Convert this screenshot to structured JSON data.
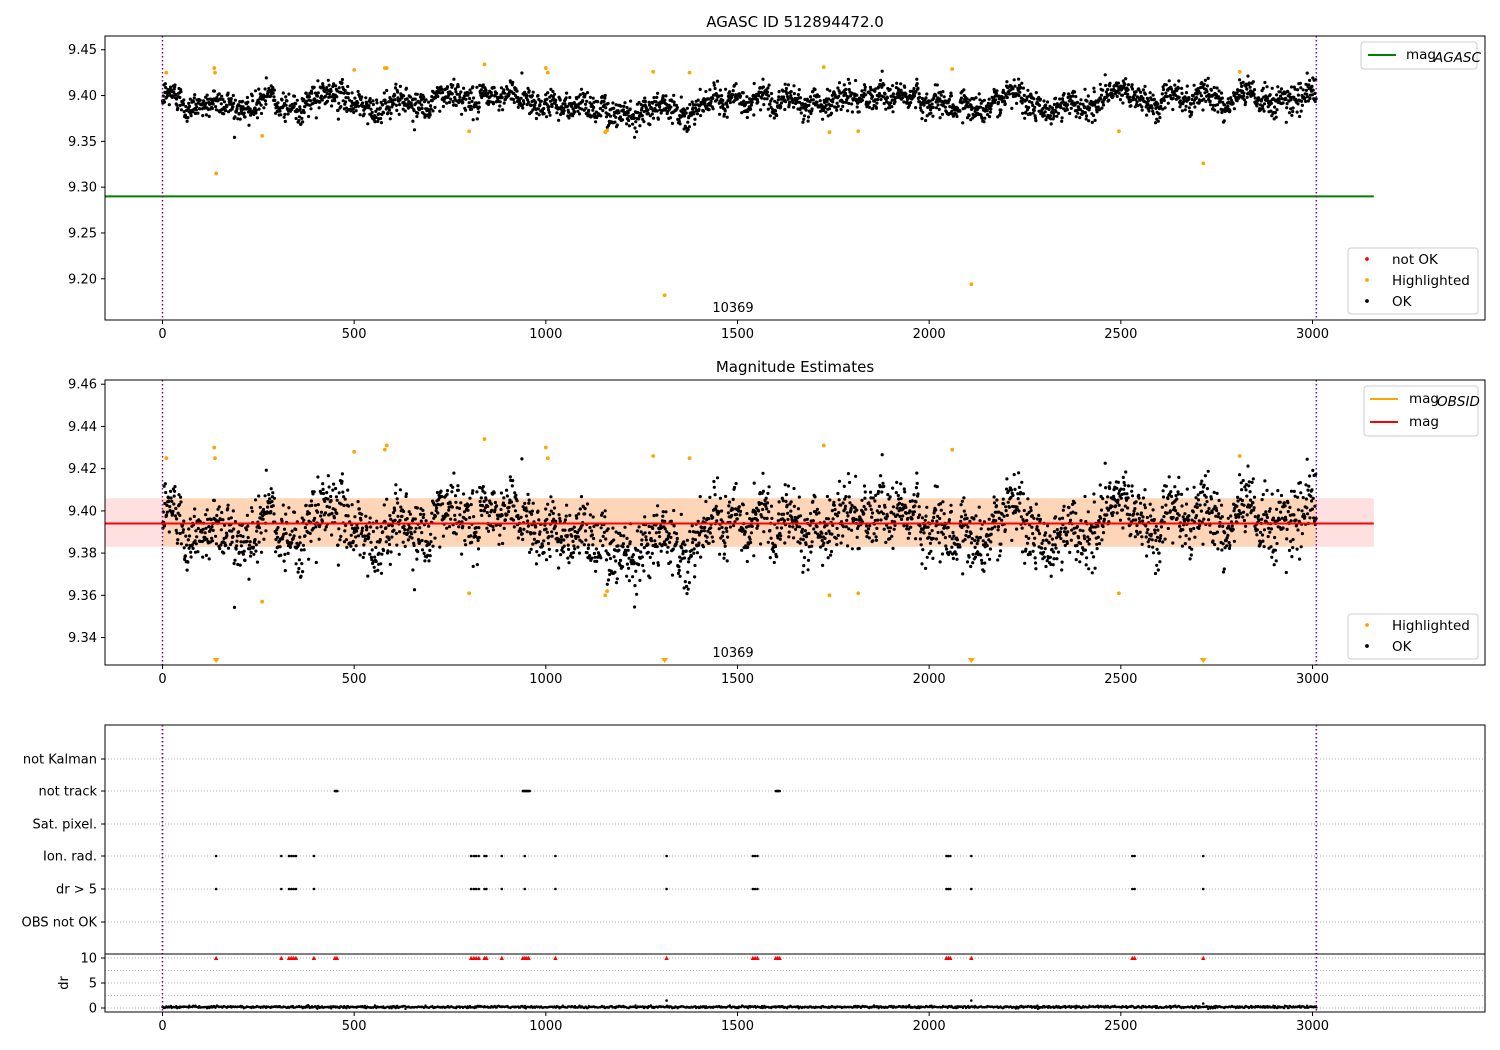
{
  "chart_data": [
    {
      "type": "scatter",
      "title": "AGASC ID 512894472.0",
      "xlim": [
        -150,
        3450
      ],
      "ylim": [
        9.155,
        9.465
      ],
      "xticks": [
        "0",
        "500",
        "1000",
        "1500",
        "2000",
        "2500",
        "3000"
      ],
      "yticks": [
        "9.20",
        "9.25",
        "9.30",
        "9.35",
        "9.40",
        "9.45"
      ],
      "annotation": "10369",
      "obs_boundaries": [
        0,
        3010
      ],
      "mag_agasc": 9.29,
      "mag_agasc_xrange": [
        -150,
        3160
      ],
      "ok_mean": 9.395,
      "ok_spread": 0.013,
      "highlighted": [
        {
          "x": 10,
          "y": 9.425
        },
        {
          "x": 135,
          "y": 9.43
        },
        {
          "x": 137,
          "y": 9.425
        },
        {
          "x": 140,
          "y": 9.315
        },
        {
          "x": 260,
          "y": 9.356
        },
        {
          "x": 500,
          "y": 9.428
        },
        {
          "x": 580,
          "y": 9.43
        },
        {
          "x": 585,
          "y": 9.43
        },
        {
          "x": 800,
          "y": 9.361
        },
        {
          "x": 840,
          "y": 9.434
        },
        {
          "x": 1000,
          "y": 9.43
        },
        {
          "x": 1005,
          "y": 9.425
        },
        {
          "x": 1155,
          "y": 9.36
        },
        {
          "x": 1160,
          "y": 9.362
        },
        {
          "x": 1280,
          "y": 9.426
        },
        {
          "x": 1310,
          "y": 9.182
        },
        {
          "x": 1375,
          "y": 9.425
        },
        {
          "x": 1725,
          "y": 9.431
        },
        {
          "x": 1740,
          "y": 9.36
        },
        {
          "x": 1815,
          "y": 9.361
        },
        {
          "x": 2060,
          "y": 9.429
        },
        {
          "x": 2110,
          "y": 9.194
        },
        {
          "x": 2495,
          "y": 9.361
        },
        {
          "x": 2715,
          "y": 9.326
        },
        {
          "x": 2810,
          "y": 9.426
        }
      ],
      "legend_top": [
        {
          "name": "mag_AGASC",
          "label": "mag",
          "sub": "AGASC",
          "color": "#008000"
        }
      ],
      "legend_bottom": [
        {
          "name": "not OK",
          "label": "not OK",
          "color": "#ff0000"
        },
        {
          "name": "Highlighted",
          "label": "Highlighted",
          "color": "#ffa500"
        },
        {
          "name": "OK",
          "label": "OK",
          "color": "#000000"
        }
      ]
    },
    {
      "type": "scatter",
      "title": "Magnitude Estimates",
      "xlim": [
        -150,
        3450
      ],
      "ylim": [
        9.327,
        9.462
      ],
      "xticks": [
        "0",
        "500",
        "1000",
        "1500",
        "2000",
        "2500",
        "3000"
      ],
      "yticks": [
        "9.34",
        "9.36",
        "9.38",
        "9.40",
        "9.42",
        "9.44",
        "9.46"
      ],
      "annotation": "10369",
      "obs_boundaries": [
        0,
        3010
      ],
      "mag": 9.394,
      "mag_band": [
        9.383,
        9.406
      ],
      "mag_xrange": [
        -150,
        3160
      ],
      "mag_obsid": 9.394,
      "mag_obsid_xrange": [
        0,
        3010
      ],
      "ok_mean": 9.395,
      "ok_spread": 0.013,
      "highlighted": [
        {
          "x": 10,
          "y": 9.425
        },
        {
          "x": 135,
          "y": 9.43
        },
        {
          "x": 137,
          "y": 9.425
        },
        {
          "x": 260,
          "y": 9.357
        },
        {
          "x": 500,
          "y": 9.428
        },
        {
          "x": 580,
          "y": 9.429
        },
        {
          "x": 585,
          "y": 9.431
        },
        {
          "x": 800,
          "y": 9.361
        },
        {
          "x": 840,
          "y": 9.434
        },
        {
          "x": 1000,
          "y": 9.43
        },
        {
          "x": 1005,
          "y": 9.425
        },
        {
          "x": 1155,
          "y": 9.36
        },
        {
          "x": 1160,
          "y": 9.362
        },
        {
          "x": 1280,
          "y": 9.426
        },
        {
          "x": 1375,
          "y": 9.425
        },
        {
          "x": 1725,
          "y": 9.431
        },
        {
          "x": 1740,
          "y": 9.36
        },
        {
          "x": 1815,
          "y": 9.361
        },
        {
          "x": 2060,
          "y": 9.429
        },
        {
          "x": 2495,
          "y": 9.361
        },
        {
          "x": 2810,
          "y": 9.426
        }
      ],
      "out_of_range_markers": [
        140,
        1310,
        2110,
        2715
      ],
      "legend_top": [
        {
          "name": "mag_OBSID",
          "label": "mag",
          "sub": "OBSID",
          "color": "#ffa500"
        },
        {
          "name": "mag",
          "label": "mag",
          "color": "#ff0000"
        }
      ],
      "legend_bottom": [
        {
          "name": "Highlighted",
          "label": "Highlighted",
          "color": "#ffa500"
        },
        {
          "name": "OK",
          "label": "OK",
          "color": "#000000"
        }
      ]
    },
    {
      "type": "scatter",
      "xlim": [
        -150,
        3450
      ],
      "xticks": [
        "0",
        "500",
        "1000",
        "1500",
        "2000",
        "2500",
        "3000"
      ],
      "obs_boundaries": [
        0,
        3010
      ],
      "flag_rows": [
        "not Kalman",
        "not track",
        "Sat. pixel.",
        "Ion. rad.",
        "dr > 5",
        "OBS not OK"
      ],
      "flags": {
        "not Kalman": [],
        "not track": [
          450,
          452,
          454,
          456,
          940,
          942,
          944,
          946,
          948,
          950,
          952,
          954,
          956,
          958,
          1600,
          1602,
          1604,
          1606,
          1608,
          1610
        ],
        "Sat. pixel.": [],
        "Ion. rad.": [
          140,
          310,
          330,
          336,
          342,
          348,
          395,
          805,
          812,
          818,
          825,
          840,
          845,
          885,
          945,
          1025,
          1315,
          1540,
          1546,
          1552,
          2045,
          2050,
          2055,
          2110,
          2530,
          2536,
          2715
        ],
        "dr > 5": [
          140,
          310,
          330,
          336,
          342,
          348,
          395,
          805,
          812,
          818,
          825,
          840,
          845,
          885,
          945,
          1025,
          1315,
          1540,
          1546,
          1552,
          2045,
          2050,
          2055,
          2110,
          2530,
          2536,
          2715
        ],
        "OBS not OK": []
      },
      "dr": {
        "ylabel": "dr",
        "ylim": [
          -0.8,
          10.8
        ],
        "yticks": [
          "0",
          "5",
          "10"
        ],
        "ok_mean": 0.2,
        "spikes": [
          {
            "x": 1315,
            "y": 1.5
          },
          {
            "x": 2110,
            "y": 1.5
          },
          {
            "x": 2715,
            "y": 0.9
          }
        ],
        "clipped_at_10": [
          140,
          310,
          330,
          336,
          342,
          348,
          395,
          450,
          455,
          805,
          812,
          818,
          825,
          840,
          845,
          885,
          940,
          945,
          950,
          955,
          1025,
          1315,
          1540,
          1546,
          1552,
          1600,
          1605,
          1610,
          2045,
          2050,
          2055,
          2110,
          2530,
          2536,
          2715
        ]
      }
    }
  ]
}
